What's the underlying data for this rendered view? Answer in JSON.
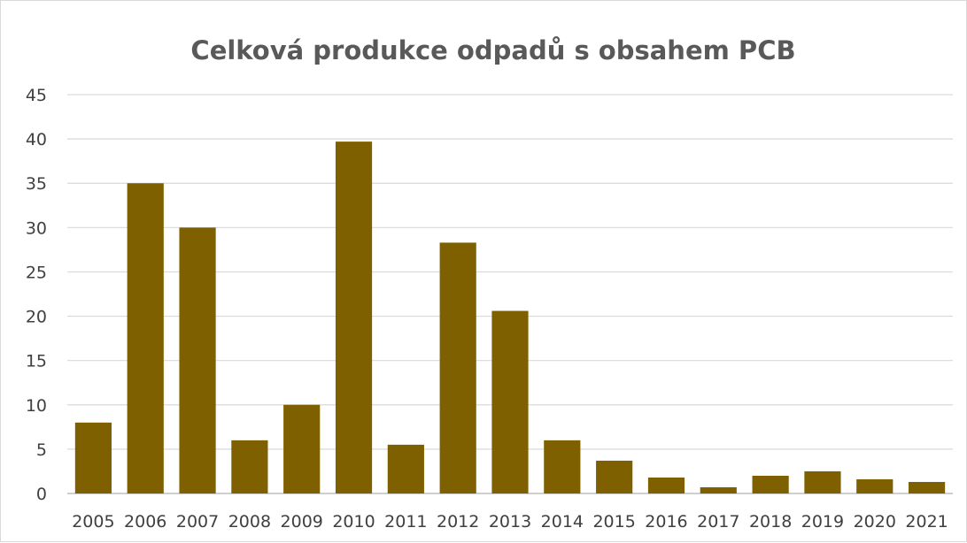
{
  "chart_data": {
    "type": "bar",
    "title": "Celková produkce odpadů s obsahem PCB",
    "xlabel": "",
    "ylabel": "",
    "categories": [
      "2005",
      "2006",
      "2007",
      "2008",
      "2009",
      "2010",
      "2011",
      "2012",
      "2013",
      "2014",
      "2015",
      "2016",
      "2017",
      "2018",
      "2019",
      "2020",
      "2021"
    ],
    "values": [
      8.0,
      35.0,
      30.0,
      6.0,
      10.0,
      39.7,
      5.5,
      28.3,
      20.6,
      6.0,
      3.7,
      1.8,
      0.7,
      2.0,
      2.5,
      1.6,
      1.3
    ],
    "ylim": [
      0,
      45
    ],
    "yticks": [
      0,
      5,
      10,
      15,
      20,
      25,
      30,
      35,
      40,
      45
    ],
    "grid": true,
    "legend": "none",
    "bar_color": "#7f6000"
  }
}
